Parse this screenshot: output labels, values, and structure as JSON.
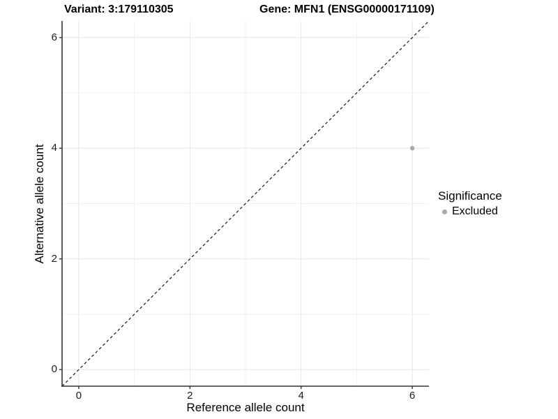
{
  "titles": {
    "left": "Variant: 3:179110305",
    "right": "Gene: MFN1 (ENSG00000171109)"
  },
  "chart_data": {
    "type": "scatter",
    "title": "Variant: 3:179110305  /  Gene: MFN1 (ENSG00000171109)",
    "xlabel": "Reference allele count",
    "ylabel": "Alternative allele count",
    "xlim": [
      -0.3,
      6.3
    ],
    "ylim": [
      -0.3,
      6.3
    ],
    "x_ticks": [
      0,
      2,
      4,
      6
    ],
    "y_ticks": [
      0,
      2,
      4,
      6
    ],
    "x_minor_ticks": [
      1,
      3,
      5
    ],
    "y_minor_ticks": [
      1,
      3,
      5
    ],
    "grid": true,
    "reference_line": {
      "type": "abline",
      "slope": 1,
      "intercept": 0,
      "style": "dashed",
      "color": "#000000"
    },
    "series": [
      {
        "name": "Excluded",
        "color": "#aaaaaa",
        "points": [
          {
            "x": 6,
            "y": 4
          }
        ]
      }
    ],
    "legend": {
      "title": "Significance",
      "position": "right",
      "items": [
        {
          "label": "Excluded",
          "color": "#aaaaaa"
        }
      ]
    }
  },
  "colors": {
    "background": "#ffffff",
    "grid_major": "#e6e6e6",
    "grid_minor": "#f2f2f2",
    "axis_line": "#333333",
    "tick_text": "#1a1a1a",
    "point": "#aaaaaa",
    "dashed_line": "#000000"
  }
}
